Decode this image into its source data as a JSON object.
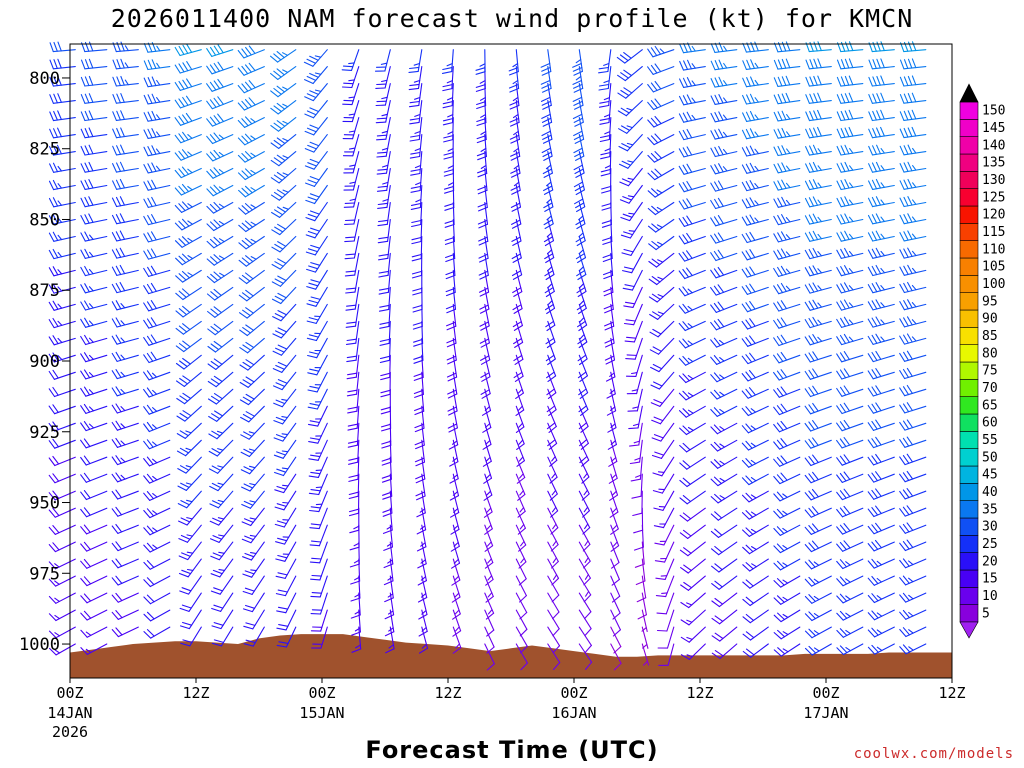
{
  "chart_data": {
    "type": "wind-barb time-height profile",
    "title": "2026011400 NAM forecast wind profile (kt) for KMCN",
    "xlabel": "Forecast Time (UTC)",
    "ylabel": "",
    "credit": "coolwx.com/models",
    "y_axis": {
      "units": "hPa",
      "range": [
        1012,
        788
      ],
      "ticks": [
        "800",
        "825",
        "850",
        "875",
        "900",
        "925",
        "950",
        "975",
        "1000"
      ]
    },
    "x_axis": {
      "units": "hours from 00Z 14JAN 2026",
      "range": [
        0,
        84
      ],
      "ticks": [
        {
          "hour": 0,
          "label": "00Z",
          "sub1": "14JAN",
          "sub2": "2026"
        },
        {
          "hour": 12,
          "label": "12Z",
          "sub1": "",
          "sub2": ""
        },
        {
          "hour": 24,
          "label": "00Z",
          "sub1": "15JAN",
          "sub2": ""
        },
        {
          "hour": 36,
          "label": "12Z",
          "sub1": "",
          "sub2": ""
        },
        {
          "hour": 48,
          "label": "00Z",
          "sub1": "16JAN",
          "sub2": ""
        },
        {
          "hour": 60,
          "label": "12Z",
          "sub1": "",
          "sub2": ""
        },
        {
          "hour": 72,
          "label": "00Z",
          "sub1": "17JAN",
          "sub2": ""
        },
        {
          "hour": 84,
          "label": "12Z",
          "sub1": "",
          "sub2": ""
        }
      ]
    },
    "surface_pressure_hpa": [
      [
        0,
        1003
      ],
      [
        2,
        1002
      ],
      [
        4,
        1001
      ],
      [
        6,
        1000
      ],
      [
        8,
        999.5
      ],
      [
        10,
        999
      ],
      [
        12,
        999
      ],
      [
        14,
        999.5
      ],
      [
        16,
        1000
      ],
      [
        17,
        999
      ],
      [
        18,
        998
      ],
      [
        20,
        997
      ],
      [
        22,
        996.5
      ],
      [
        24,
        996.5
      ],
      [
        26,
        996.5
      ],
      [
        28,
        997.5
      ],
      [
        30,
        998.5
      ],
      [
        32,
        999.5
      ],
      [
        34,
        1000
      ],
      [
        36,
        1000.5
      ],
      [
        38,
        1001.5
      ],
      [
        40,
        1002.5
      ],
      [
        42,
        1001.5
      ],
      [
        44,
        1000.5
      ],
      [
        46,
        1001.5
      ],
      [
        48,
        1002.5
      ],
      [
        50,
        1003.5
      ],
      [
        52,
        1004.5
      ],
      [
        54,
        1004.5
      ],
      [
        56,
        1004
      ],
      [
        58,
        1004
      ],
      [
        60,
        1004
      ],
      [
        62,
        1004
      ],
      [
        64,
        1004
      ],
      [
        66,
        1004
      ],
      [
        68,
        1004
      ],
      [
        70,
        1003.5
      ],
      [
        72,
        1003.5
      ],
      [
        74,
        1003.5
      ],
      [
        76,
        1003.5
      ],
      [
        78,
        1003
      ],
      [
        80,
        1003
      ],
      [
        82,
        1003
      ],
      [
        84,
        1003
      ]
    ],
    "barb_levels_hpa": [
      1000,
      994,
      988,
      982,
      976,
      970,
      964,
      958,
      952,
      946,
      940,
      934,
      928,
      922,
      916,
      910,
      904,
      898,
      892,
      886,
      880,
      874,
      868,
      862,
      856,
      850,
      844,
      838,
      832,
      826,
      820,
      814,
      808,
      802,
      796,
      790
    ],
    "wind_keyframes": [
      {
        "hour": 0,
        "dir_low": 240,
        "dir_high": 265,
        "spd_low": 15,
        "spd_high": 30
      },
      {
        "hour": 9,
        "dir_low": 245,
        "dir_high": 265,
        "spd_low": 20,
        "spd_high": 35
      },
      {
        "hour": 12,
        "dir_low": 210,
        "dir_high": 255,
        "spd_low": 20,
        "spd_high": 40
      },
      {
        "hour": 18,
        "dir_low": 210,
        "dir_high": 250,
        "spd_low": 20,
        "spd_high": 40
      },
      {
        "hour": 24,
        "dir_low": 200,
        "dir_high": 225,
        "spd_low": 20,
        "spd_high": 35
      },
      {
        "hour": 27,
        "dir_low": 175,
        "dir_high": 200,
        "spd_low": 15,
        "spd_high": 25
      },
      {
        "hour": 33,
        "dir_low": 165,
        "dir_high": 190,
        "spd_low": 15,
        "spd_high": 25
      },
      {
        "hour": 42,
        "dir_low": 150,
        "dir_high": 175,
        "spd_low": 10,
        "spd_high": 25
      },
      {
        "hour": 48,
        "dir_low": 145,
        "dir_high": 170,
        "spd_low": 10,
        "spd_high": 35
      },
      {
        "hour": 51,
        "dir_low": 150,
        "dir_high": 180,
        "spd_low": 10,
        "spd_high": 25
      },
      {
        "hour": 55,
        "dir_low": 165,
        "dir_high": 240,
        "spd_low": 5,
        "spd_high": 30
      },
      {
        "hour": 60,
        "dir_low": 225,
        "dir_high": 262,
        "spd_low": 15,
        "spd_high": 35
      },
      {
        "hour": 72,
        "dir_low": 240,
        "dir_high": 265,
        "spd_low": 25,
        "spd_high": 40
      },
      {
        "hour": 84,
        "dir_low": 245,
        "dir_high": 265,
        "spd_low": 25,
        "spd_high": 40
      }
    ],
    "colorbar": {
      "labels": [
        "5",
        "10",
        "15",
        "20",
        "25",
        "30",
        "35",
        "40",
        "45",
        "50",
        "55",
        "60",
        "65",
        "70",
        "75",
        "80",
        "85",
        "90",
        "95",
        "100",
        "105",
        "110",
        "115",
        "120",
        "125",
        "130",
        "135",
        "140",
        "145",
        "150"
      ],
      "colors": [
        "#8800dd",
        "#6a00ee",
        "#4800f5",
        "#2a10f8",
        "#1430f8",
        "#1050f4",
        "#0a78f0",
        "#0096e8",
        "#00b4e0",
        "#00d0d0",
        "#00e0b0",
        "#10e060",
        "#30e820",
        "#70f000",
        "#b0f800",
        "#e8f800",
        "#f8e000",
        "#f8c000",
        "#f8a000",
        "#f89000",
        "#f88000",
        "#f86a00",
        "#f84000",
        "#f81400",
        "#f80030",
        "#f0005a",
        "#f00080",
        "#f000a8",
        "#f000c8",
        "#f000e0"
      ],
      "under_color": "#a020f0",
      "over_color": "#000000"
    },
    "terrain_color": "#a0522d"
  }
}
